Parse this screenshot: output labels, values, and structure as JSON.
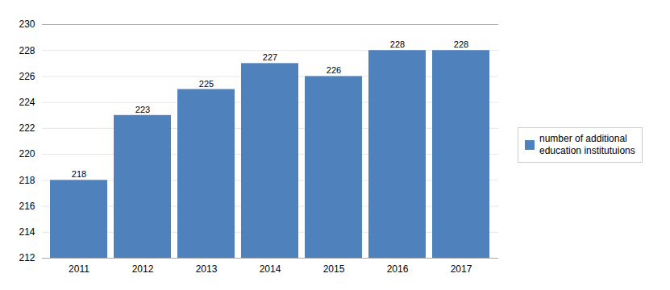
{
  "chart_data": {
    "type": "bar",
    "categories": [
      "2011",
      "2012",
      "2013",
      "2014",
      "2015",
      "2016",
      "2017"
    ],
    "series": [
      {
        "name": "number of additional\neducation institutuions",
        "color": "#4f81bd",
        "values": [
          218,
          223,
          225,
          227,
          226,
          228,
          228
        ]
      }
    ],
    "ylim": [
      212,
      230
    ],
    "yticks": [
      212,
      214,
      216,
      218,
      220,
      222,
      224,
      226,
      228,
      230
    ],
    "grid": true,
    "legend": "right",
    "data_labels": true
  }
}
